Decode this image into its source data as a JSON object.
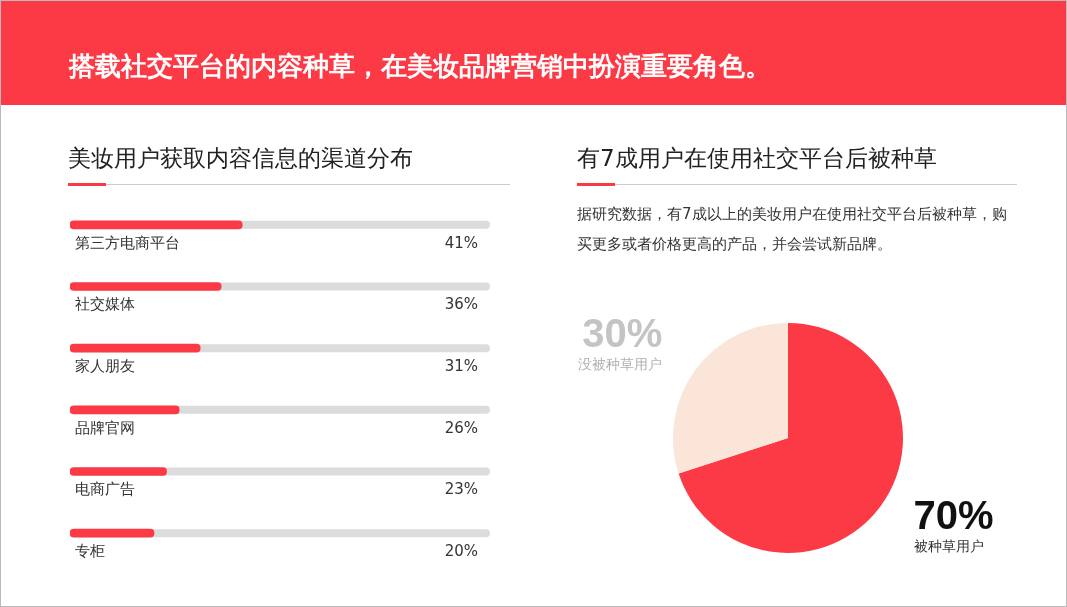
{
  "chart_data": [
    {
      "type": "other",
      "title": "搭载社交平台的内容种草，在美妆品牌营销中扮演重要角色。"
    },
    {
      "type": "bar",
      "orientation": "horizontal",
      "title": "美妆用户获取内容信息的渠道分布",
      "categories": [
        "第三方电商平台",
        "社交媒体",
        "家人朋友",
        "品牌官网",
        "电商广告",
        "专柜"
      ],
      "values": [
        41,
        36,
        31,
        26,
        23,
        20
      ],
      "value_labels": [
        "41%",
        "36%",
        "31%",
        "26%",
        "23%",
        "20%"
      ],
      "color": "#fc3a46",
      "xlim": [
        0,
        100
      ],
      "tick_labels": false,
      "legend": false
    },
    {
      "type": "pie",
      "title": "有7成用户在使用社交平台后被种草",
      "subtitle": "据研究数据，有7成以上的美妆用户在使用社交平台后被种草，购买更多或者价格更高的产品，并会尝试新品牌。",
      "categories": [
        "被种草用户",
        "没被种草用户"
      ],
      "values": [
        70,
        30
      ],
      "value_labels": [
        "70%",
        "30%"
      ],
      "colors": [
        "#fc3a46",
        "#fae5d8"
      ],
      "legend": false
    }
  ]
}
